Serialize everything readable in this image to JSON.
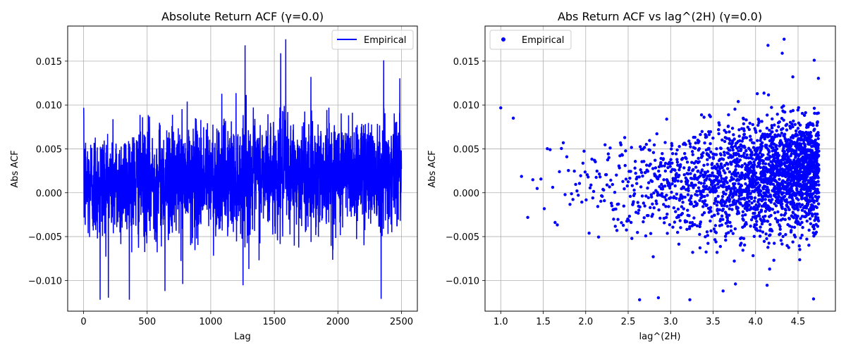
{
  "figure": {
    "background": "#ffffff"
  },
  "chart_data": [
    {
      "type": "line",
      "title": "Absolute Return ACF (γ=0.0)",
      "xlabel": "Lag",
      "ylabel": "Abs ACF",
      "xlim": [
        -125,
        2625
      ],
      "ylim": [
        -0.0135,
        0.019
      ],
      "xticks": [
        0,
        500,
        1000,
        1500,
        2000,
        2500
      ],
      "xtick_labels": [
        "0",
        "500",
        "1000",
        "1500",
        "2000",
        "2500"
      ],
      "yticks": [
        -0.01,
        -0.005,
        0.0,
        0.005,
        0.01,
        0.015
      ],
      "ytick_labels": [
        "−0.010",
        "−0.005",
        "0.000",
        "0.005",
        "0.010",
        "0.015"
      ],
      "grid": true,
      "legend": {
        "position": "top-right",
        "entries": [
          {
            "label": "Empirical",
            "marker": "line"
          }
        ]
      },
      "series": [
        {
          "name": "Empirical",
          "color": "#0000ff",
          "n_points": 2500,
          "x_start": 1,
          "x_step": 1,
          "trend_start": 0.0008,
          "trend_end": 0.0028,
          "noise_sd": 0.0032,
          "clip": [
            -0.0122,
            0.0176
          ],
          "spikes": [
            {
              "x": 2,
              "y": 0.0085
            },
            {
              "x": 130,
              "y": -0.0122
            },
            {
              "x": 640,
              "y": -0.0112
            },
            {
              "x": 780,
              "y": -0.0104
            },
            {
              "x": 1270,
              "y": 0.0168
            },
            {
              "x": 1590,
              "y": 0.0175
            },
            {
              "x": 1550,
              "y": 0.0159
            },
            {
              "x": 2340,
              "y": -0.0121
            },
            {
              "x": 2360,
              "y": 0.0151
            },
            {
              "x": 1300,
              "y": -0.0087
            }
          ]
        }
      ]
    },
    {
      "type": "scatter",
      "title": "Abs Return ACF vs lag^(2H) (γ=0.0)",
      "xlabel": "lag^(2H)",
      "ylabel": "Abs ACF",
      "xlim": [
        0.815,
        4.94
      ],
      "ylim": [
        -0.0135,
        0.019
      ],
      "xticks": [
        1.0,
        1.5,
        2.0,
        2.5,
        3.0,
        3.5,
        4.0,
        4.5
      ],
      "xtick_labels": [
        "1.0",
        "1.5",
        "2.0",
        "2.5",
        "3.0",
        "3.5",
        "4.0",
        "4.5"
      ],
      "yticks": [
        -0.01,
        -0.005,
        0.0,
        0.005,
        0.01,
        0.015
      ],
      "ytick_labels": [
        "−0.010",
        "−0.005",
        "0.000",
        "0.005",
        "0.010",
        "0.015"
      ],
      "grid": true,
      "legend": {
        "position": "top-left",
        "entries": [
          {
            "label": "Empirical",
            "marker": "dot"
          }
        ]
      },
      "series": [
        {
          "name": "Empirical",
          "color": "#0000ff",
          "transform": "lag^0.199",
          "source_series": 0
        }
      ]
    }
  ]
}
